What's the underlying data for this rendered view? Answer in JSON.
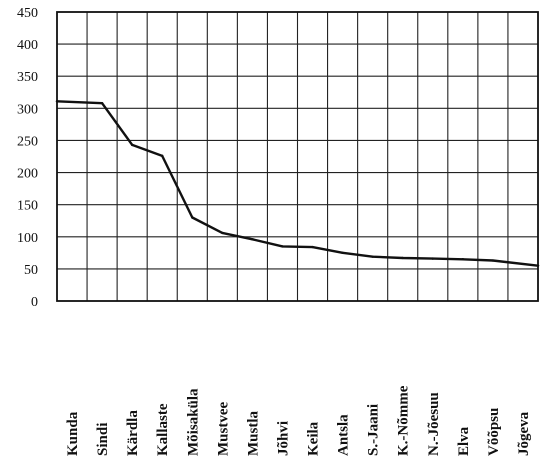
{
  "chart_data": {
    "type": "line",
    "categories": [
      "Kunda",
      "Sindi",
      "Kärdla",
      "Kallaste",
      "Mõisaküla",
      "Mustvee",
      "Mustla",
      "Jõhvi",
      "Keila",
      "Antsla",
      "S.-Jaani",
      "K.-Nõmme",
      "N.-Jõesuu",
      "Elva",
      "Võõpsu",
      "Jõgeva"
    ],
    "series": [
      {
        "values": [
          311,
          308,
          243,
          226,
          130,
          106,
          96,
          85,
          84,
          75,
          69,
          67,
          66,
          65,
          63,
          55
        ]
      }
    ],
    "y_ticks": [
      "450",
      "400",
      "350",
      "300",
      "250",
      "200",
      "150",
      "100",
      "50",
      "0"
    ],
    "ylim": [
      0,
      450
    ],
    "grid": true,
    "title": "",
    "xlabel": "",
    "ylabel": "",
    "colors": {
      "line": "#111111",
      "grid": "#222222",
      "background": "#ffffff"
    }
  }
}
